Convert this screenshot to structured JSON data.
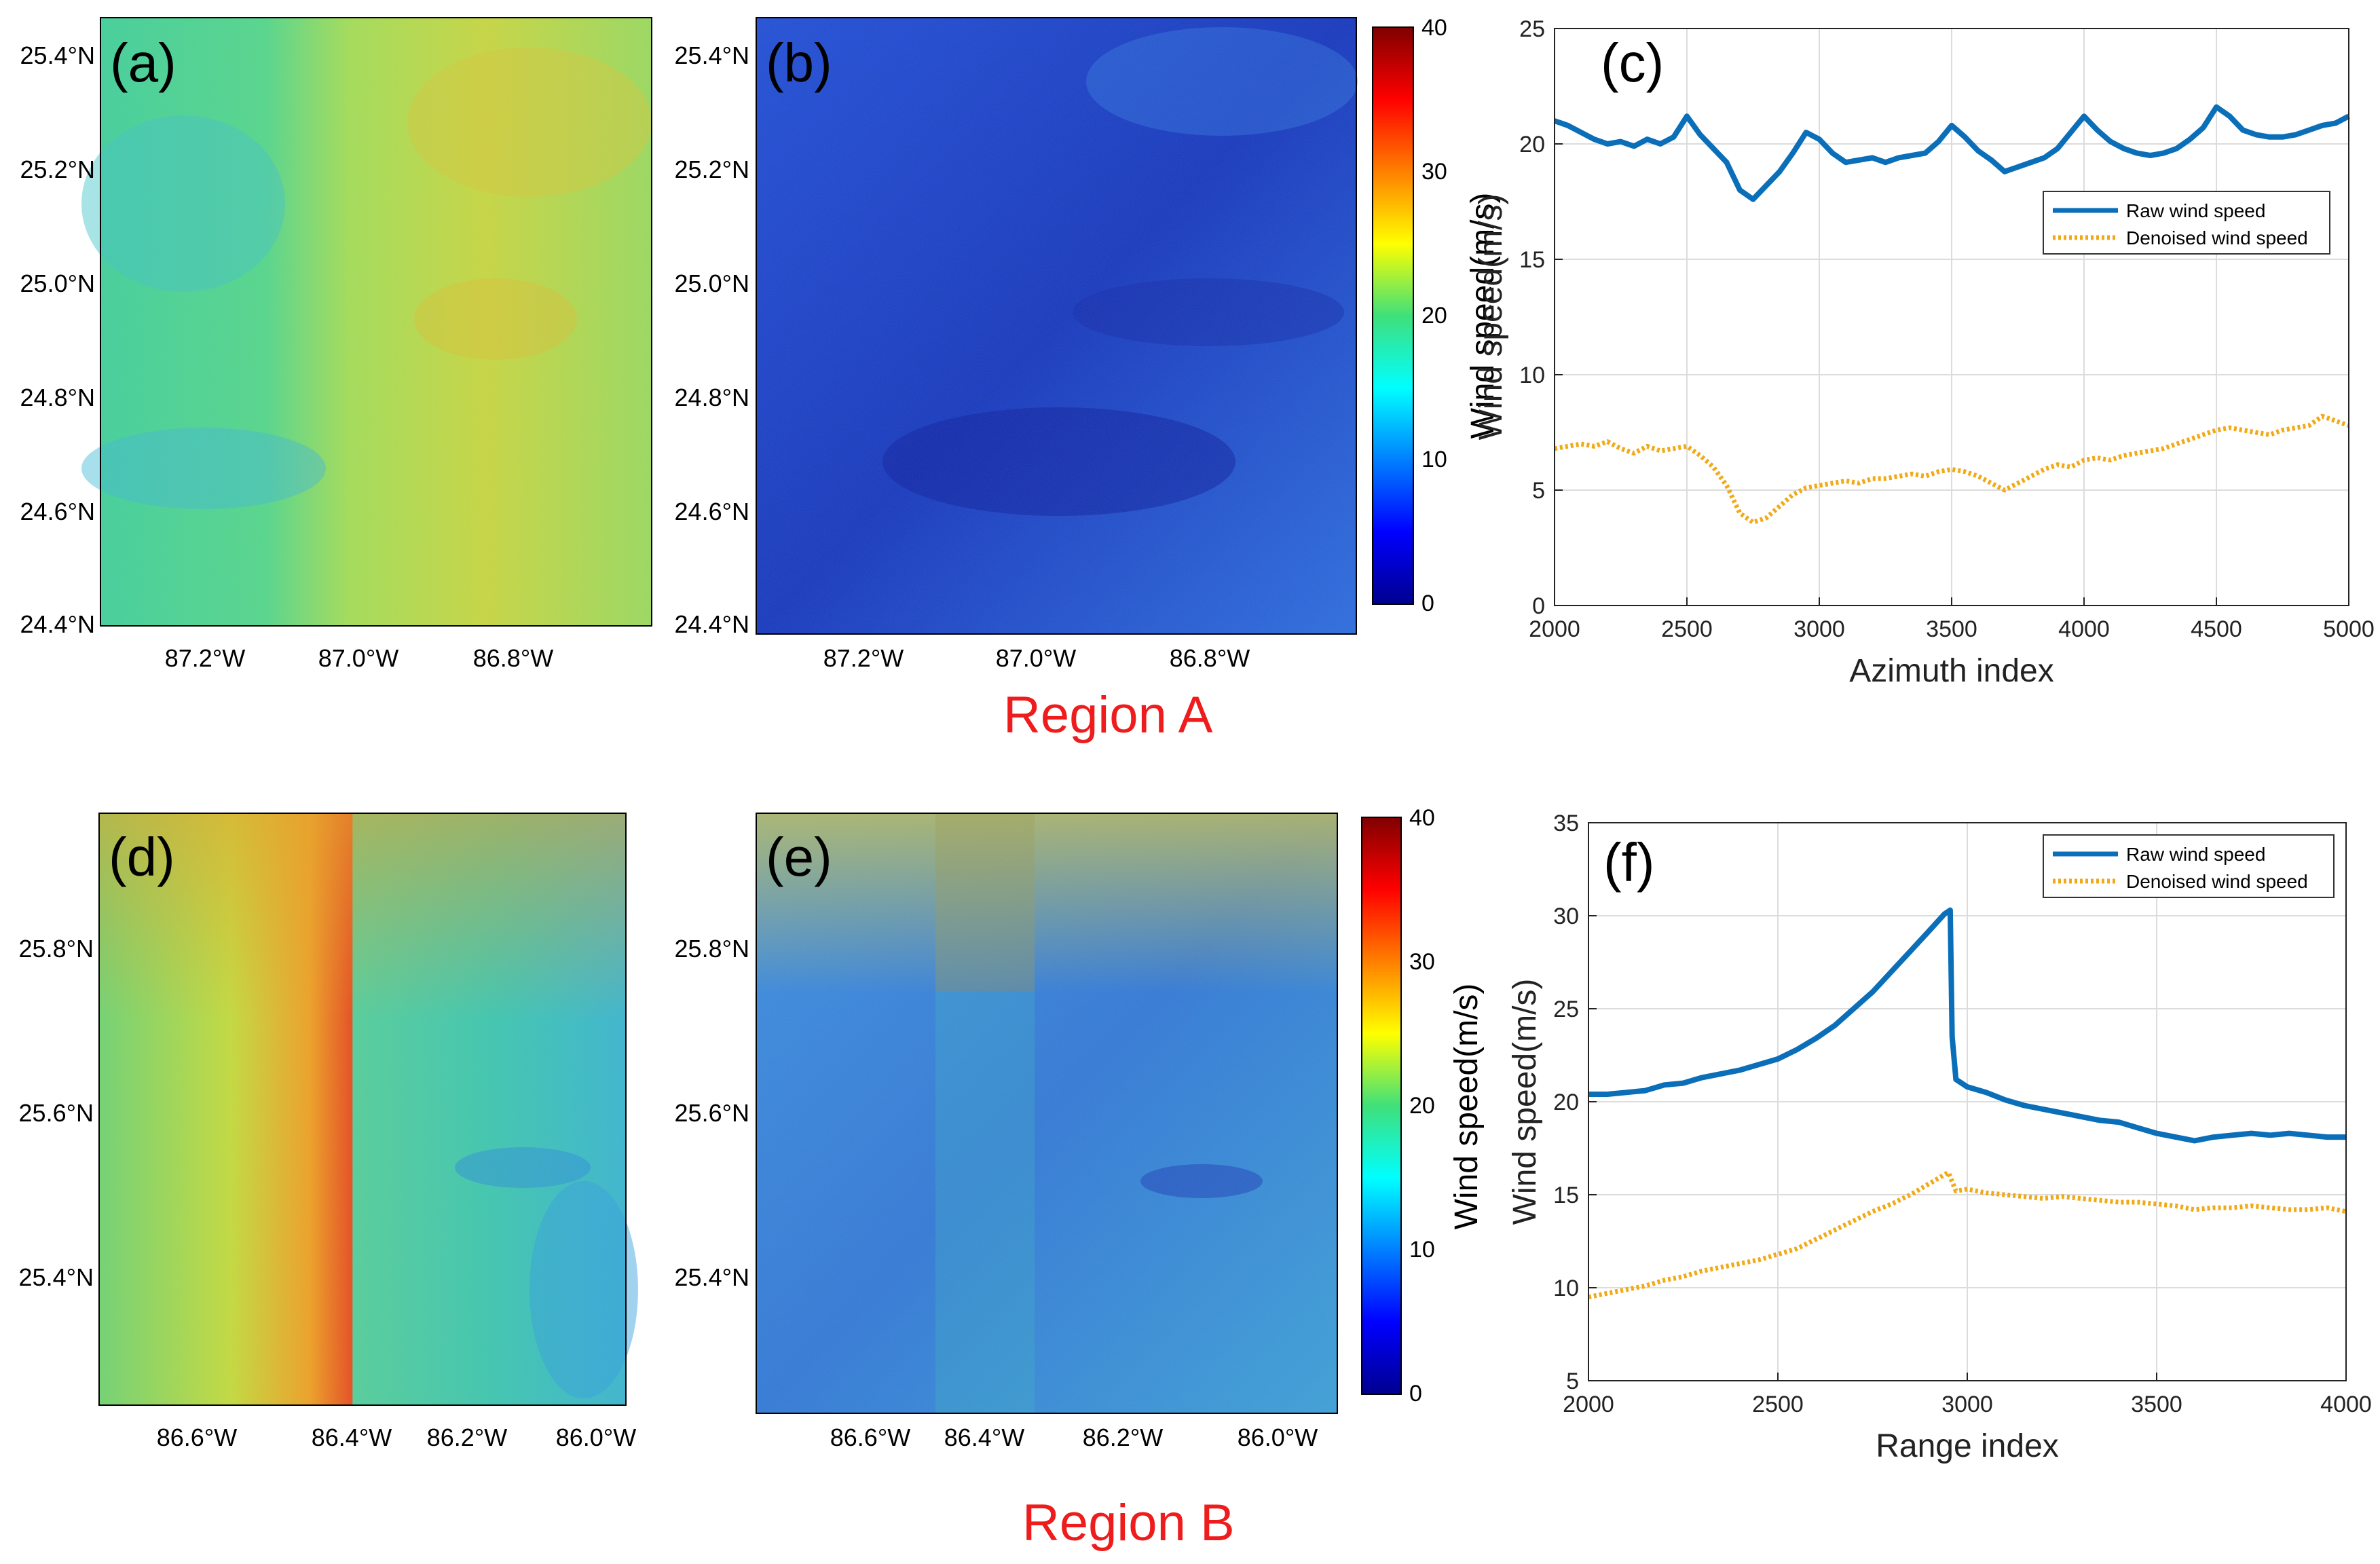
{
  "region_labels": {
    "a": "Region A",
    "b": "Region B"
  },
  "colors": {
    "raw_line": "#0a6eb8",
    "denoised_line": "#f2a916",
    "region_label": "#ee1c1c",
    "grid": "#dcdcdc"
  },
  "colorbar": {
    "label": "Wind speed(m/s)",
    "ticks": [
      "0",
      "10",
      "20",
      "30",
      "40"
    ],
    "range": [
      0,
      40
    ]
  },
  "maps": [
    {
      "panel": "(a)",
      "description_kind": "raw SAR wind speed",
      "lat_labels": [
        "25.4°N",
        "25.2°N",
        "25.0°N",
        "24.8°N",
        "24.6°N",
        "24.4°N"
      ],
      "lon_labels": [
        "87.2°W",
        "87.0°W",
        "86.8°W"
      ]
    },
    {
      "panel": "(b)",
      "description_kind": "denoised SAR wind speed",
      "lat_labels": [
        "25.4°N",
        "25.2°N",
        "25.0°N",
        "24.8°N",
        "24.6°N",
        "24.4°N"
      ],
      "lon_labels": [
        "87.2°W",
        "87.0°W",
        "86.8°W"
      ]
    },
    {
      "panel": "(d)",
      "description_kind": "raw SAR wind speed",
      "lat_labels": [
        "25.8°N",
        "25.6°N",
        "25.4°N"
      ],
      "lon_labels": [
        "86.6°W",
        "86.4°W",
        "86.2°W",
        "86.0°W"
      ]
    },
    {
      "panel": "(e)",
      "description_kind": "denoised SAR wind speed",
      "lat_labels": [
        "25.8°N",
        "25.6°N",
        "25.4°N"
      ],
      "lon_labels": [
        "86.6°W",
        "86.4°W",
        "86.2°W",
        "86.0°W"
      ]
    }
  ],
  "chart_data": [
    {
      "panel": "(c)",
      "type": "line",
      "xlabel": "Azimuth index",
      "ylabel": "Wind speed(m/s)",
      "xlim": [
        2000,
        5000
      ],
      "ylim": [
        0,
        25
      ],
      "xticks": [
        2000,
        2500,
        3000,
        3500,
        4000,
        4500,
        5000
      ],
      "yticks": [
        0,
        5,
        10,
        15,
        20,
        25
      ],
      "grid": true,
      "legend_position": "middle-right",
      "series": [
        {
          "name": "Raw wind speed",
          "style": "solid",
          "x": [
            2000,
            2050,
            2100,
            2150,
            2200,
            2250,
            2300,
            2350,
            2400,
            2450,
            2500,
            2550,
            2600,
            2650,
            2700,
            2750,
            2800,
            2850,
            2900,
            2950,
            3000,
            3050,
            3100,
            3150,
            3200,
            3250,
            3300,
            3350,
            3400,
            3450,
            3500,
            3550,
            3600,
            3650,
            3700,
            3750,
            3800,
            3850,
            3900,
            3950,
            4000,
            4050,
            4100,
            4150,
            4200,
            4250,
            4300,
            4350,
            4400,
            4450,
            4500,
            4550,
            4600,
            4650,
            4700,
            4750,
            4800,
            4850,
            4900,
            4950,
            5000
          ],
          "values": [
            21.0,
            20.8,
            20.5,
            20.2,
            20.0,
            20.1,
            19.9,
            20.2,
            20.0,
            20.3,
            21.2,
            20.4,
            19.8,
            19.2,
            18.0,
            17.6,
            18.2,
            18.8,
            19.6,
            20.5,
            20.2,
            19.6,
            19.2,
            19.3,
            19.4,
            19.2,
            19.4,
            19.5,
            19.6,
            20.1,
            20.8,
            20.3,
            19.7,
            19.3,
            18.8,
            19.0,
            19.2,
            19.4,
            19.8,
            20.5,
            21.2,
            20.6,
            20.1,
            19.8,
            19.6,
            19.5,
            19.6,
            19.8,
            20.2,
            20.7,
            21.6,
            21.2,
            20.6,
            20.4,
            20.3,
            20.3,
            20.4,
            20.6,
            20.8,
            20.9,
            21.2
          ]
        },
        {
          "name": "Denoised wind speed",
          "style": "dotted",
          "x": [
            2000,
            2050,
            2100,
            2150,
            2200,
            2250,
            2300,
            2350,
            2400,
            2450,
            2500,
            2550,
            2600,
            2650,
            2700,
            2750,
            2800,
            2850,
            2900,
            2950,
            3000,
            3050,
            3100,
            3150,
            3200,
            3250,
            3300,
            3350,
            3400,
            3450,
            3500,
            3550,
            3600,
            3650,
            3700,
            3750,
            3800,
            3850,
            3900,
            3950,
            4000,
            4050,
            4100,
            4150,
            4200,
            4250,
            4300,
            4350,
            4400,
            4450,
            4500,
            4550,
            4600,
            4650,
            4700,
            4750,
            4800,
            4850,
            4900,
            4950,
            5000
          ],
          "values": [
            6.8,
            6.9,
            7.0,
            6.9,
            7.1,
            6.8,
            6.6,
            6.9,
            6.7,
            6.8,
            6.9,
            6.5,
            6.0,
            5.2,
            4.0,
            3.6,
            3.8,
            4.3,
            4.8,
            5.1,
            5.2,
            5.3,
            5.4,
            5.3,
            5.5,
            5.5,
            5.6,
            5.7,
            5.6,
            5.8,
            5.9,
            5.8,
            5.6,
            5.3,
            5.0,
            5.3,
            5.6,
            5.9,
            6.1,
            6.0,
            6.3,
            6.4,
            6.3,
            6.5,
            6.6,
            6.7,
            6.8,
            7.0,
            7.2,
            7.4,
            7.6,
            7.7,
            7.6,
            7.5,
            7.4,
            7.6,
            7.7,
            7.8,
            8.2,
            8.0,
            7.8
          ]
        }
      ]
    },
    {
      "panel": "(f)",
      "type": "line",
      "xlabel": "Range index",
      "ylabel": "Wind speed(m/s)",
      "xlim": [
        2000,
        4000
      ],
      "ylim": [
        5,
        35
      ],
      "xticks": [
        2000,
        2500,
        3000,
        3500,
        4000
      ],
      "yticks": [
        5,
        10,
        15,
        20,
        25,
        30,
        35
      ],
      "grid": true,
      "legend_position": "top-right",
      "series": [
        {
          "name": "Raw wind speed",
          "style": "solid",
          "x": [
            2000,
            2050,
            2100,
            2150,
            2200,
            2250,
            2300,
            2350,
            2400,
            2450,
            2500,
            2550,
            2600,
            2650,
            2700,
            2750,
            2800,
            2850,
            2900,
            2940,
            2955,
            2960,
            2970,
            3000,
            3050,
            3100,
            3150,
            3200,
            3250,
            3300,
            3350,
            3400,
            3450,
            3500,
            3550,
            3600,
            3650,
            3700,
            3750,
            3800,
            3850,
            3900,
            3950,
            4000
          ],
          "values": [
            20.4,
            20.4,
            20.5,
            20.6,
            20.9,
            21.0,
            21.3,
            21.5,
            21.7,
            22.0,
            22.3,
            22.8,
            23.4,
            24.1,
            25.0,
            25.9,
            27.0,
            28.1,
            29.2,
            30.1,
            30.3,
            23.5,
            21.2,
            20.8,
            20.5,
            20.1,
            19.8,
            19.6,
            19.4,
            19.2,
            19.0,
            18.9,
            18.6,
            18.3,
            18.1,
            17.9,
            18.1,
            18.2,
            18.3,
            18.2,
            18.3,
            18.2,
            18.1,
            18.1
          ]
        },
        {
          "name": "Denoised wind speed",
          "style": "dotted",
          "x": [
            2000,
            2050,
            2100,
            2150,
            2200,
            2250,
            2300,
            2350,
            2400,
            2450,
            2500,
            2550,
            2600,
            2650,
            2700,
            2750,
            2800,
            2850,
            2900,
            2950,
            2970,
            3000,
            3050,
            3100,
            3150,
            3200,
            3250,
            3300,
            3350,
            3400,
            3450,
            3500,
            3550,
            3600,
            3650,
            3700,
            3750,
            3800,
            3850,
            3900,
            3950,
            4000
          ],
          "values": [
            9.5,
            9.7,
            9.9,
            10.1,
            10.4,
            10.6,
            10.9,
            11.1,
            11.3,
            11.5,
            11.8,
            12.1,
            12.6,
            13.1,
            13.6,
            14.1,
            14.5,
            15.0,
            15.6,
            16.2,
            15.2,
            15.3,
            15.1,
            15.0,
            14.9,
            14.8,
            14.9,
            14.8,
            14.7,
            14.6,
            14.6,
            14.5,
            14.4,
            14.2,
            14.3,
            14.3,
            14.4,
            14.3,
            14.2,
            14.2,
            14.3,
            14.1
          ]
        }
      ]
    }
  ]
}
